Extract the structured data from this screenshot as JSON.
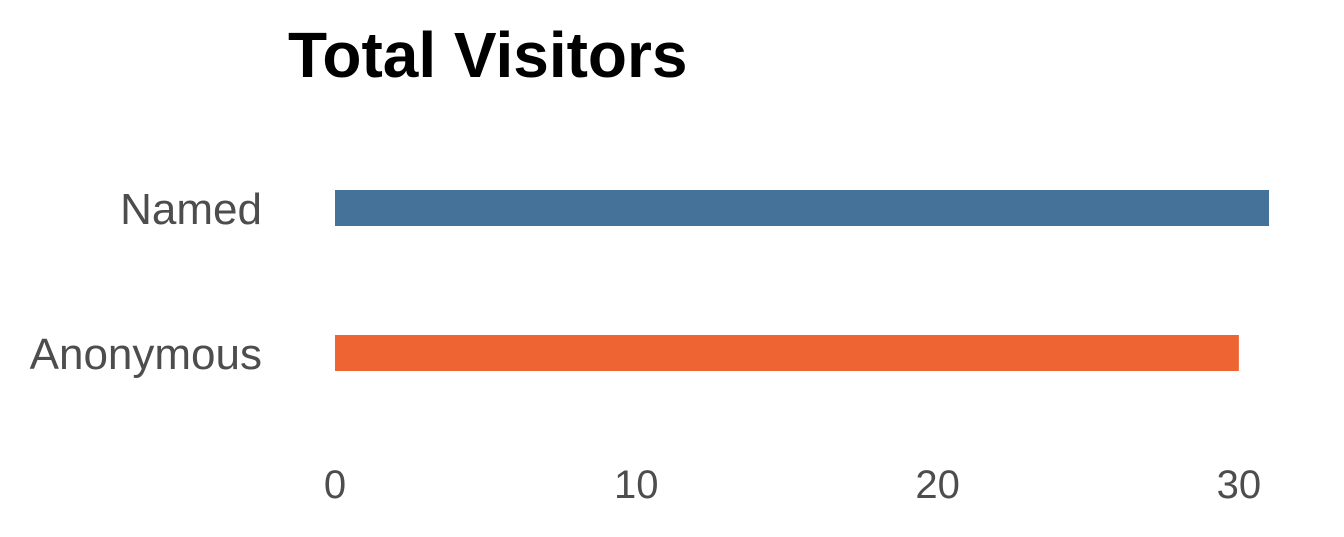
{
  "chart_data": {
    "type": "bar",
    "orientation": "horizontal",
    "title": "Total Visitors",
    "xlabel": "",
    "ylabel": "",
    "categories": [
      "Named",
      "Anonymous"
    ],
    "values": [
      31,
      30
    ],
    "colors": [
      "#457299",
      "#EF6433"
    ],
    "xlim": [
      0,
      31
    ],
    "xticks": [
      0,
      10,
      20,
      30
    ],
    "xtick_labels": [
      "0",
      "10",
      "20",
      "30"
    ],
    "grid": false,
    "legend": "none"
  }
}
